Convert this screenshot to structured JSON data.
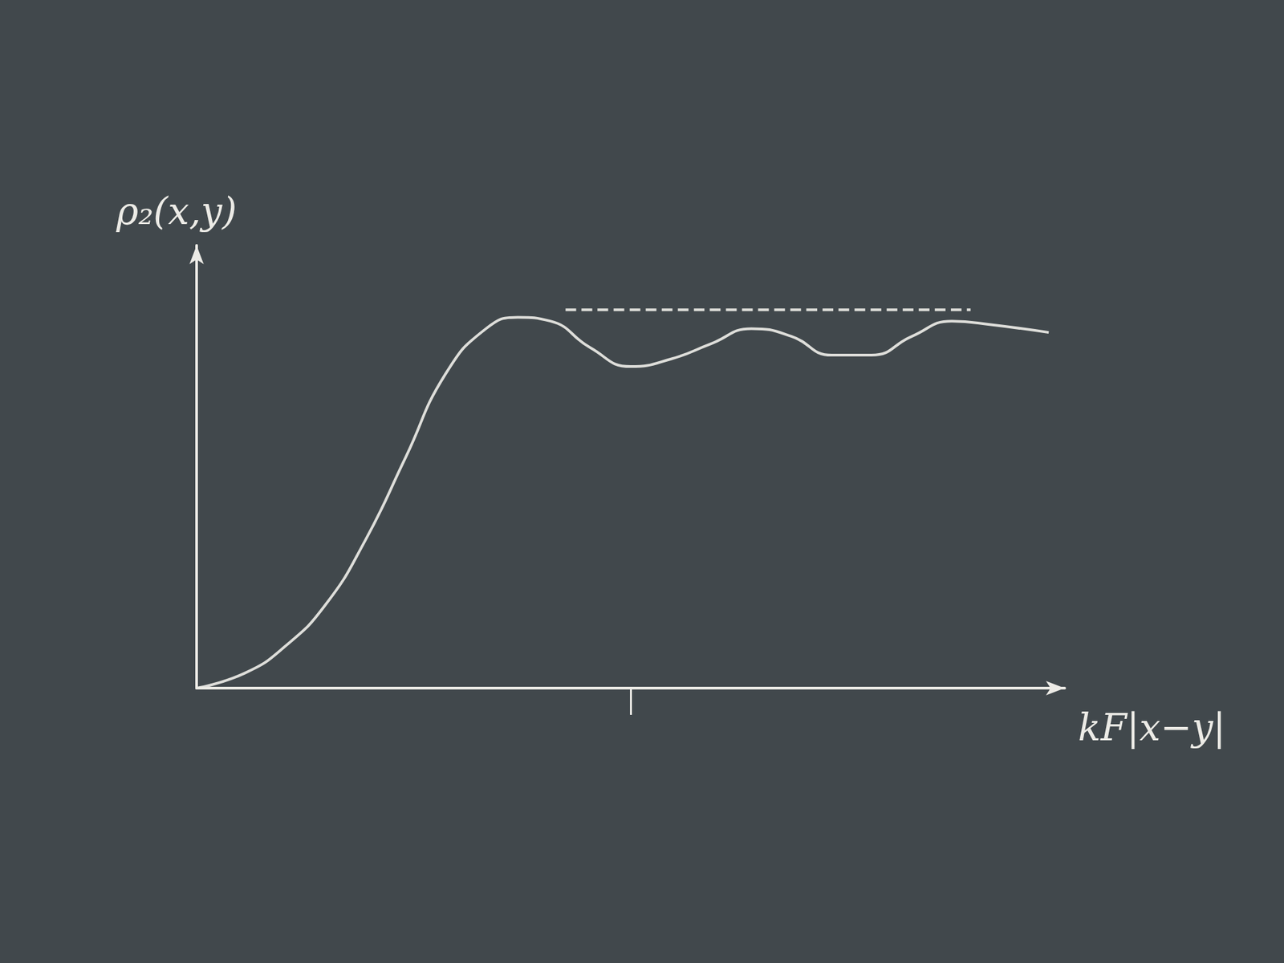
{
  "chart_data": {
    "type": "line",
    "xlabel": "kF|x−y|",
    "ylabel": "ρ₂(x,y)",
    "xlim": [
      0,
      12
    ],
    "xticks": [
      6
    ],
    "ylim": [
      0,
      1.17
    ],
    "yticks": [],
    "tick_labels": false,
    "grid": false,
    "series": [
      {
        "x": [
          0,
          0.67,
          1.22,
          1.78,
          2.33,
          2.89,
          3.44,
          4.0,
          4.44,
          4.89,
          5.44,
          6.0,
          6.56,
          7.11,
          7.67,
          8.22,
          8.78,
          9.33,
          9.89,
          10.44,
          11.0,
          11.78
        ],
        "values": [
          0,
          0.04,
          0.11,
          0.22,
          0.39,
          0.61,
          0.83,
          0.95,
          0.98,
          0.97,
          0.9,
          0.85,
          0.87,
          0.91,
          0.95,
          0.93,
          0.88,
          0.88,
          0.93,
          0.97,
          0.96,
          0.94
        ],
        "color": "#ecebe6",
        "line_style": "solid",
        "marker": "none"
      },
      {
        "x": [
          5.1,
          10.7
        ],
        "values": [
          1,
          1
        ],
        "color": "#ecebe6",
        "line_style": "dashed",
        "marker": "none"
      }
    ]
  }
}
